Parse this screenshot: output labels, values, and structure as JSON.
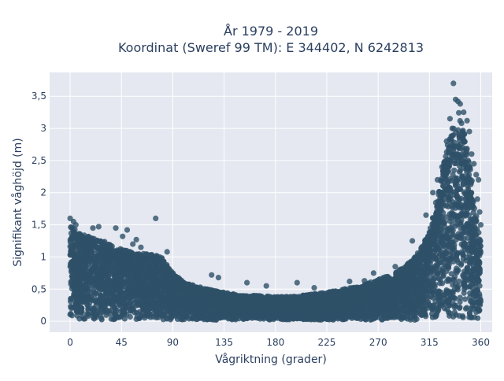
{
  "chart_data": {
    "type": "scatter",
    "title_line1": "År 1979 - 2019",
    "title_line2": "Koordinat (Sweref 99 TM): E 344402, N 6242813",
    "xlabel": "Vågriktning (grader)",
    "ylabel": "Signifikant våghöjd (m)",
    "xlim": [
      -18,
      370
    ],
    "ylim": [
      -0.17,
      3.87
    ],
    "x_ticks": [
      0,
      45,
      90,
      135,
      180,
      225,
      270,
      315,
      360
    ],
    "x_tick_labels": [
      "0",
      "45",
      "90",
      "135",
      "180",
      "225",
      "270",
      "315",
      "360"
    ],
    "y_ticks": [
      0,
      0.5,
      1,
      1.5,
      2,
      2.5,
      3,
      3.5
    ],
    "y_tick_labels": [
      "0",
      "0,5",
      "1",
      "1,5",
      "2",
      "2,5",
      "3",
      "3,5"
    ],
    "grid": true,
    "marker_color": "#2e5068",
    "plot_bg": "#e5e8f0",
    "envelope": {
      "direction_deg": [
        0,
        10,
        20,
        30,
        40,
        50,
        60,
        70,
        80,
        90,
        100,
        110,
        120,
        135,
        150,
        165,
        180,
        195,
        210,
        225,
        240,
        255,
        270,
        285,
        300,
        310,
        315,
        320,
        325,
        330,
        335,
        340,
        345,
        350,
        355,
        360
      ],
      "max_height_m": [
        1.5,
        1.35,
        1.3,
        1.25,
        1.15,
        1.1,
        1.05,
        1.05,
        1.0,
        0.75,
        0.6,
        0.55,
        0.5,
        0.45,
        0.4,
        0.4,
        0.38,
        0.38,
        0.42,
        0.45,
        0.5,
        0.55,
        0.65,
        0.75,
        0.95,
        1.2,
        1.45,
        1.8,
        2.2,
        2.7,
        3.0,
        3.3,
        3.0,
        2.5,
        1.8,
        1.2
      ]
    },
    "outliers": [
      {
        "x": 0,
        "y": 1.6
      },
      {
        "x": 3,
        "y": 1.55
      },
      {
        "x": 5,
        "y": 1.5
      },
      {
        "x": 20,
        "y": 1.45
      },
      {
        "x": 25,
        "y": 1.47
      },
      {
        "x": 40,
        "y": 1.45
      },
      {
        "x": 46,
        "y": 1.32
      },
      {
        "x": 50,
        "y": 1.42
      },
      {
        "x": 58,
        "y": 1.27
      },
      {
        "x": 75,
        "y": 1.6
      },
      {
        "x": 55,
        "y": 1.2
      },
      {
        "x": 62,
        "y": 1.15
      },
      {
        "x": 85,
        "y": 1.08
      },
      {
        "x": 124,
        "y": 0.72
      },
      {
        "x": 130,
        "y": 0.68
      },
      {
        "x": 155,
        "y": 0.6
      },
      {
        "x": 172,
        "y": 0.55
      },
      {
        "x": 199,
        "y": 0.6
      },
      {
        "x": 214,
        "y": 0.52
      },
      {
        "x": 245,
        "y": 0.62
      },
      {
        "x": 258,
        "y": 0.63
      },
      {
        "x": 266,
        "y": 0.75
      },
      {
        "x": 285,
        "y": 0.85
      },
      {
        "x": 300,
        "y": 1.25
      },
      {
        "x": 312,
        "y": 1.65
      },
      {
        "x": 318,
        "y": 2.0
      },
      {
        "x": 322,
        "y": 2.2
      },
      {
        "x": 330,
        "y": 2.8
      },
      {
        "x": 333,
        "y": 3.15
      },
      {
        "x": 336,
        "y": 3.7
      },
      {
        "x": 338,
        "y": 3.45
      },
      {
        "x": 340,
        "y": 3.42
      },
      {
        "x": 342,
        "y": 3.38
      },
      {
        "x": 345,
        "y": 3.25
      },
      {
        "x": 348,
        "y": 3.12
      },
      {
        "x": 350,
        "y": 2.95
      },
      {
        "x": 354,
        "y": 2.45
      },
      {
        "x": 356,
        "y": 2.28
      },
      {
        "x": 358,
        "y": 2.2
      },
      {
        "x": 357,
        "y": 1.9
      },
      {
        "x": 359,
        "y": 1.7
      },
      {
        "x": 360,
        "y": 1.5
      },
      {
        "x": 344,
        "y": 2.95
      },
      {
        "x": 352,
        "y": 2.6
      },
      {
        "x": 326,
        "y": 2.4
      },
      {
        "x": 335,
        "y": 3.0
      }
    ]
  }
}
